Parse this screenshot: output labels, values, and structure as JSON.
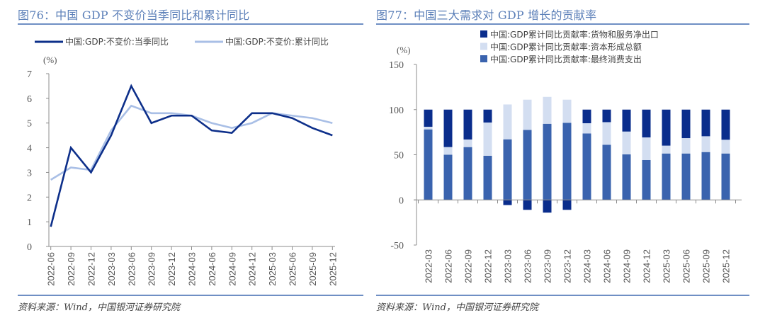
{
  "left_panel": {
    "title": "图76：中国 GDP 不变价当季同比和累计同比",
    "source": "资料来源：Wind，中国银河证券研究院"
  },
  "right_panel": {
    "title": "图77：中国三大需求对 GDP 增长的贡献率",
    "source": "资料来源：Wind，中国银河证券研究院"
  },
  "chart_data": [
    {
      "type": "line",
      "title": "中国 GDP 不变价当季同比和累计同比",
      "ylabel": "(%)",
      "xlabel": "",
      "ylim": [
        0,
        7
      ],
      "yticks": [
        0,
        1,
        2,
        3,
        4,
        5,
        6,
        7
      ],
      "grid": false,
      "legend_position": "top",
      "categories": [
        "2022-06",
        "2022-09",
        "2022-12",
        "2023-03",
        "2023-06",
        "2023-09",
        "2023-12",
        "2024-03",
        "2024-06",
        "2024-09",
        "2024-12",
        "2025-03",
        "2025-06",
        "2025-09",
        "2025-12"
      ],
      "series": [
        {
          "name": "中国:GDP:不变价:当季同比",
          "color": "#0d2f8a",
          "values": [
            0.8,
            4.0,
            3.0,
            4.5,
            6.5,
            5.0,
            5.3,
            5.3,
            4.7,
            4.6,
            5.4,
            5.4,
            5.2,
            4.8,
            4.5
          ]
        },
        {
          "name": "中国:GDP:不变价:累计同比",
          "color": "#a9bfe6",
          "values": [
            2.7,
            3.2,
            3.1,
            4.7,
            5.7,
            5.4,
            5.4,
            5.3,
            5.0,
            4.8,
            5.0,
            5.4,
            5.3,
            5.2,
            5.0
          ]
        }
      ]
    },
    {
      "type": "bar",
      "stacked": true,
      "title": "中国三大需求对 GDP 增长的贡献率",
      "ylabel": "(%)",
      "xlabel": "",
      "ylim": [
        -50,
        150
      ],
      "yticks": [
        -50,
        0,
        50,
        100,
        150
      ],
      "negative_tick_color": "#e8261c",
      "grid": false,
      "legend_position": "top",
      "categories": [
        "2022-03",
        "2022-06",
        "2022-09",
        "2022-12",
        "2023-03",
        "2023-06",
        "2023-09",
        "2023-12",
        "2024-03",
        "2024-06",
        "2024-09",
        "2024-12",
        "2025-03",
        "2025-06",
        "2025-09",
        "2025-12"
      ],
      "series": [
        {
          "name": "中国:GDP累计同比贡献率:最终消费支出",
          "color": "#3a63ae",
          "values": [
            78.1,
            50.1,
            58.5,
            48.9,
            67.1,
            77.5,
            84.3,
            85.4,
            73.6,
            61.1,
            50.4,
            44.2,
            51.4,
            51.4,
            53.0,
            51.4
          ]
        },
        {
          "name": "中国:GDP累计同比贡献率:资本形成总额",
          "color": "#d3def1",
          "values": [
            2.9,
            8.4,
            8.4,
            36.8,
            38.6,
            33.5,
            29.8,
            25.6,
            11.3,
            25.0,
            25.3,
            25.0,
            8.7,
            17.0,
            17.5,
            15.2
          ]
        },
        {
          "name": "中国:GDP累计同比贡献率:货物和服务净出口",
          "color": "#0a2d8c",
          "values": [
            19.0,
            41.5,
            33.1,
            14.3,
            -5.7,
            -11.0,
            -14.1,
            -11.0,
            15.1,
            13.9,
            24.3,
            30.8,
            39.9,
            31.6,
            29.5,
            33.4
          ]
        }
      ],
      "legend_order": [
        2,
        1,
        0
      ]
    }
  ]
}
